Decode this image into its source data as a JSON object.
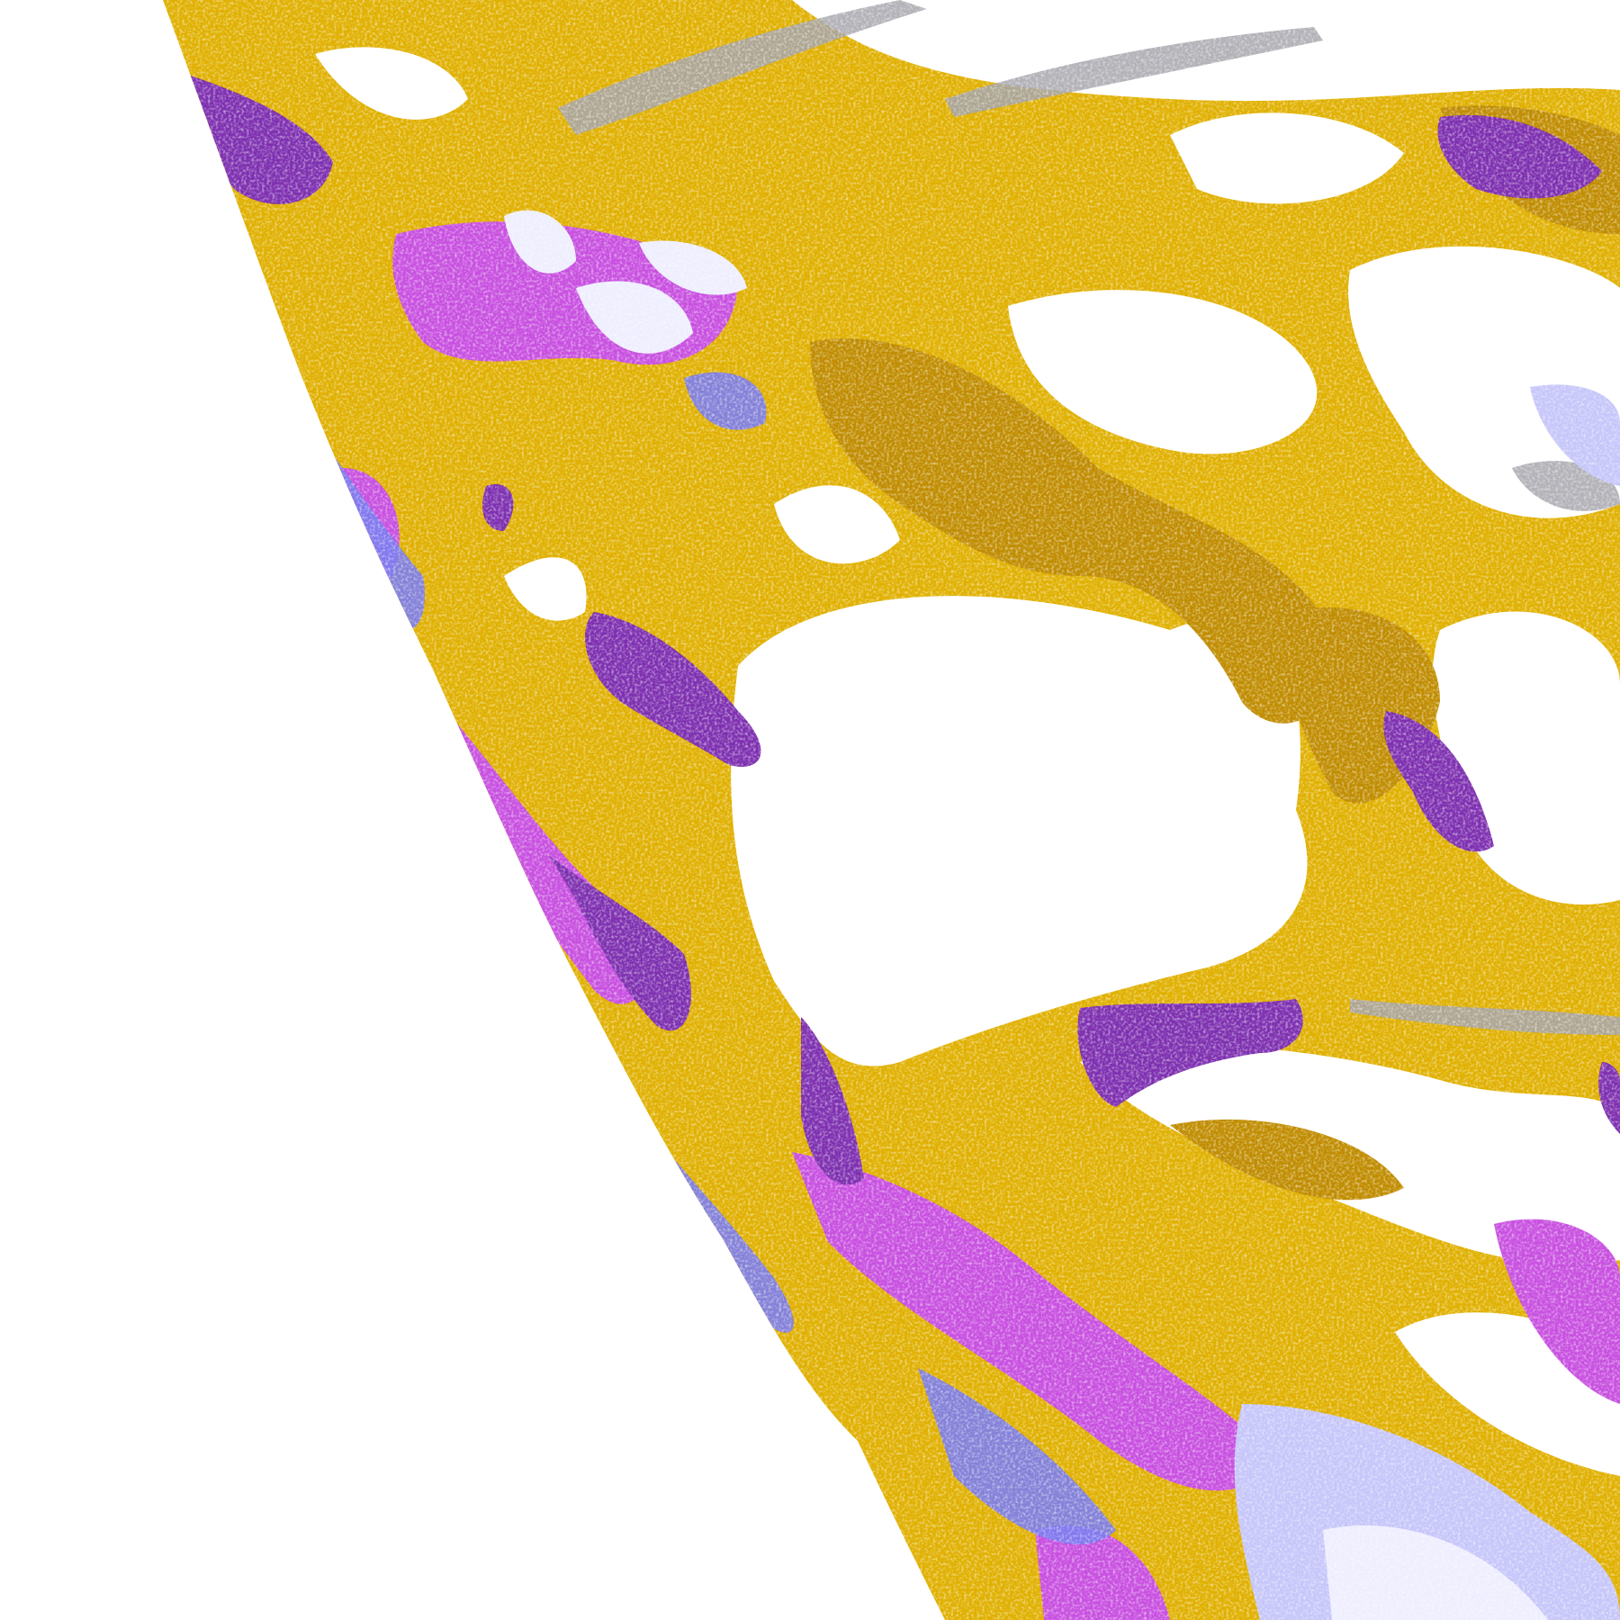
{
  "map": {
    "colors": {
      "background": "#ffffff",
      "clear": "#ffffff",
      "gold": "#e0b000",
      "dark_gold": "#c08c00",
      "dark_purple": "#7e30b0",
      "magenta": "#c850e0",
      "blue_violet": "#7a7cf0",
      "lavender": "#c6c6fa",
      "pale_lavender": "#eeeeff",
      "gray": "#a4a4ac"
    }
  }
}
